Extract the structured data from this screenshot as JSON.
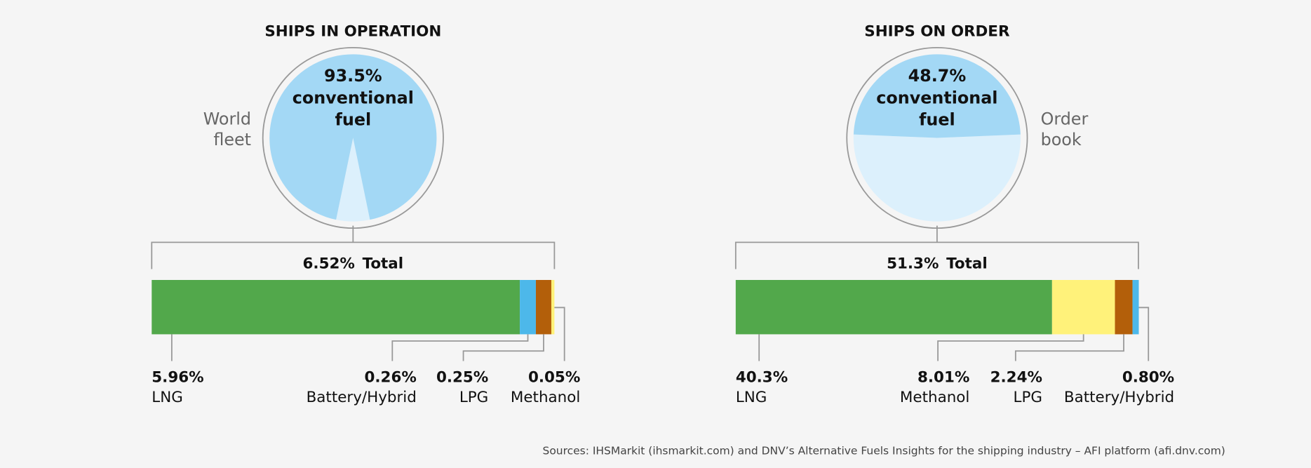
{
  "chart_data": [
    {
      "type": "pie",
      "title": "SHIPS IN OPERATION",
      "side_label": "World fleet",
      "main": {
        "value": 93.5,
        "value_label": "93.5%",
        "label": "conventional fuel",
        "color": "#a3d8f5"
      },
      "total": {
        "value": 6.52,
        "value_label": "6.52%",
        "label": "Total",
        "color": "#dcf0fc"
      },
      "categories": [
        "LNG",
        "Battery/Hybrid",
        "LPG",
        "Methanol"
      ],
      "values": [
        5.96,
        0.26,
        0.25,
        0.05
      ],
      "value_labels": [
        "5.96%",
        "0.26%",
        "0.25%",
        "0.05%"
      ],
      "colors": [
        "#52a84b",
        "#4db8ea",
        "#b35f0a",
        "#fff27a"
      ]
    },
    {
      "type": "pie",
      "title": "SHIPS ON ORDER",
      "side_label": "Order book",
      "main": {
        "value": 48.7,
        "value_label": "48.7%",
        "label": "conventional fuel",
        "color": "#a3d8f5"
      },
      "total": {
        "value": 51.3,
        "value_label": "51.3%",
        "label": "Total",
        "color": "#dcf0fc"
      },
      "categories": [
        "LNG",
        "Methanol",
        "LPG",
        "Battery/Hybrid"
      ],
      "values": [
        40.3,
        8.01,
        2.24,
        0.8
      ],
      "value_labels": [
        "40.3%",
        "8.01%",
        "2.24%",
        "0.80%"
      ],
      "colors": [
        "#52a84b",
        "#fff27a",
        "#b35f0a",
        "#4db8ea"
      ]
    }
  ],
  "source": "Sources: IHSMarkit (ihsmarkit.com) and DNV’s Alternative Fuels Insights for the shipping industry – AFI platform (afi.dnv.com)"
}
